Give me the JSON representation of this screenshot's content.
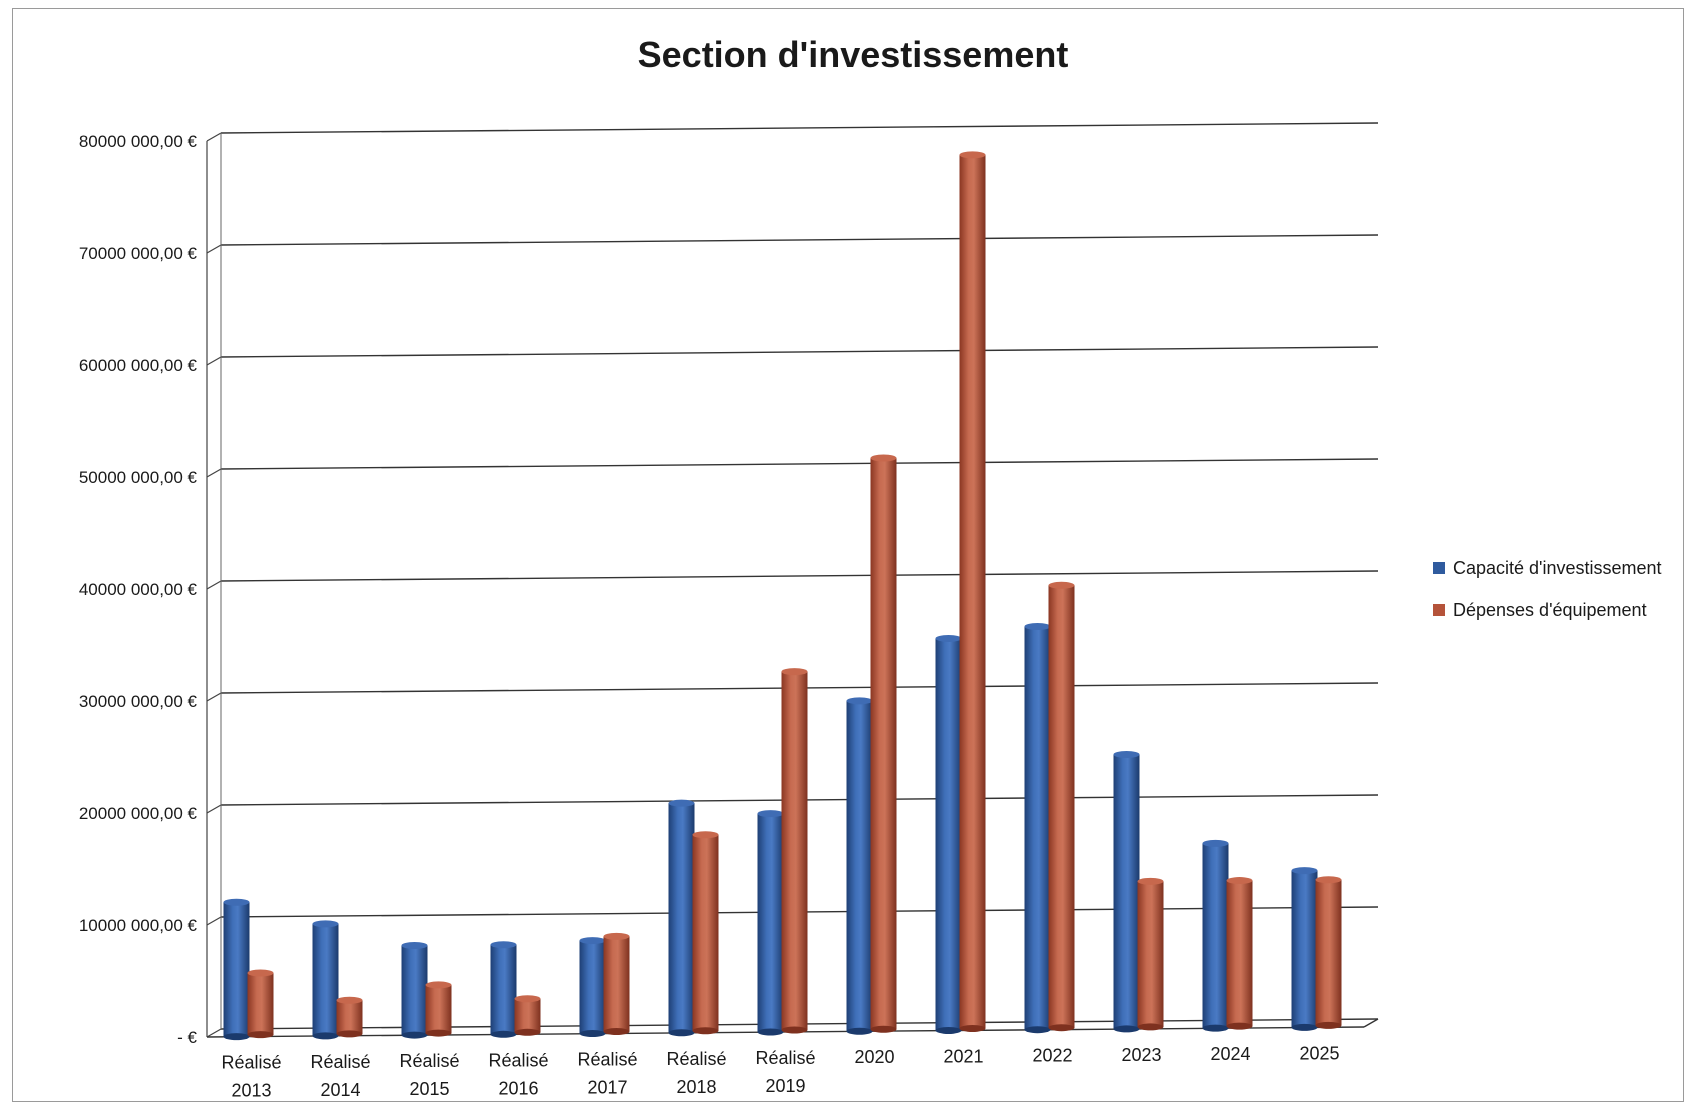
{
  "chart_data": {
    "type": "bar",
    "title": "Section d'investissement",
    "categories": [
      [
        "Réalisé",
        "2013"
      ],
      [
        "Réalisé",
        "2014"
      ],
      [
        "Réalisé",
        "2015"
      ],
      [
        "Réalisé",
        "2016"
      ],
      [
        "Réalisé",
        "2017"
      ],
      [
        "Réalisé",
        "2018"
      ],
      [
        "Réalisé",
        "2019"
      ],
      [
        "2020"
      ],
      [
        "2021"
      ],
      [
        "2022"
      ],
      [
        "2023"
      ],
      [
        "2024"
      ],
      [
        "2025"
      ]
    ],
    "series": [
      {
        "name": "Capacité d'investissement",
        "color": "#2f5b9e",
        "values": [
          12000000,
          10000000,
          8000000,
          8000000,
          8300000,
          20500000,
          19500000,
          29500000,
          35000000,
          36000000,
          24500000,
          16500000,
          14000000
        ]
      },
      {
        "name": "Dépenses d'équipement",
        "color": "#b5533a",
        "values": [
          5500000,
          3000000,
          4300000,
          3000000,
          8500000,
          17500000,
          32000000,
          51000000,
          78000000,
          39500000,
          13000000,
          13000000,
          13000000
        ]
      }
    ],
    "ylim": [
      0,
      80000000
    ],
    "yticks": [
      0,
      10000000,
      20000000,
      30000000,
      40000000,
      50000000,
      60000000,
      70000000,
      80000000
    ],
    "ytick_labels": [
      "- €",
      "10000 000,00 €",
      "20000 000,00 €",
      "30000 000,00 €",
      "40000 000,00 €",
      "50000 000,00 €",
      "60000 000,00 €",
      "70000 000,00 €",
      "80000 000,00 €"
    ],
    "grid": true,
    "legend_position": "right"
  }
}
